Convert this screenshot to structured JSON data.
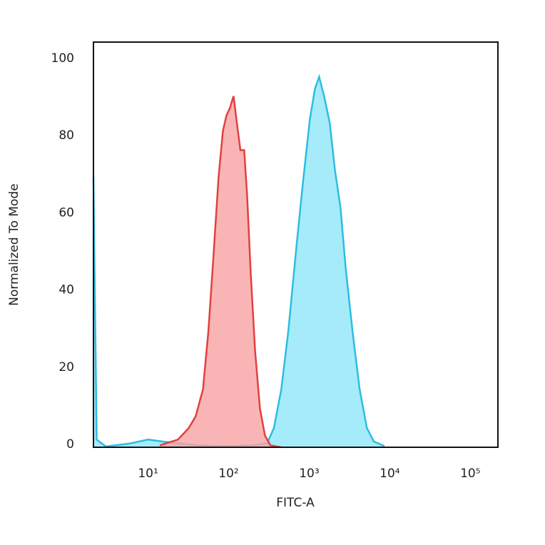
{
  "chart_data": {
    "type": "area",
    "x_label": "FITC-A",
    "y_label": "Normalized To Mode",
    "x_log": true,
    "xlim": [
      2.1,
      220000
    ],
    "xticks": [
      {
        "value": 10,
        "label": "10¹"
      },
      {
        "value": 100,
        "label": "10²"
      },
      {
        "value": 1000,
        "label": "10³"
      },
      {
        "value": 10000,
        "label": "10⁴"
      },
      {
        "value": 100000,
        "label": "10⁵"
      }
    ],
    "ylim": [
      0,
      105
    ],
    "yticks": [
      0,
      20,
      40,
      60,
      80,
      100
    ],
    "series": [
      {
        "color": "#e2403f",
        "fill": "#f8a3a3",
        "x": [
          14,
          23.5,
          32,
          39,
          48,
          56,
          65,
          75,
          85,
          94,
          104,
          115,
          125,
          140,
          156,
          170,
          188,
          213,
          245,
          283,
          330,
          450
        ],
        "values": [
          0.5,
          2,
          5,
          8,
          15,
          30,
          50,
          70,
          82,
          86,
          88,
          91,
          85,
          77,
          77,
          65,
          45,
          25,
          10,
          3,
          0.5,
          0
        ]
      },
      {
        "color": "#2cbde2",
        "fill": "#90e6f9",
        "x": [
          2.1,
          2.3,
          3,
          6,
          10,
          15,
          25,
          40,
          100,
          200,
          300,
          365,
          450,
          550,
          680,
          830,
          1020,
          1180,
          1330,
          1530,
          1800,
          2080,
          2450,
          2820,
          3450,
          4230,
          5200,
          6350,
          8600
        ],
        "values": [
          70,
          2,
          0.2,
          1,
          2,
          1.5,
          1,
          0.5,
          0.3,
          0.5,
          1,
          5,
          15,
          30,
          50,
          68,
          85,
          93,
          96,
          91,
          84,
          72,
          62,
          47,
          30,
          15,
          5,
          1.5,
          0.3
        ]
      }
    ]
  }
}
